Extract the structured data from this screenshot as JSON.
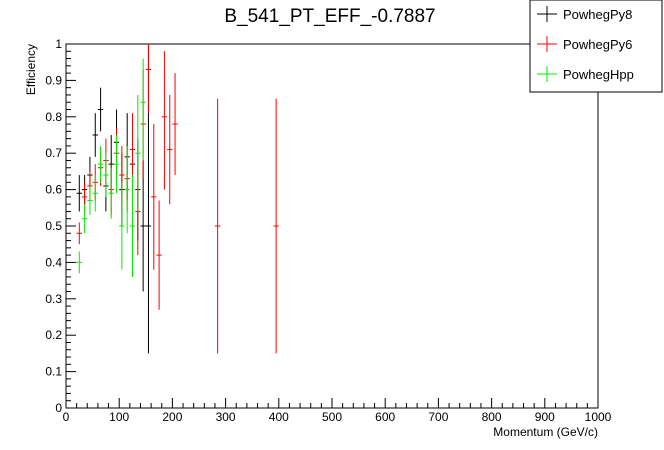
{
  "chart_data": {
    "type": "scatter",
    "title": "B_541_PT_EFF_-0.7887",
    "xlabel": "Momentum (GeV/c)",
    "ylabel": "Efficiency",
    "xlim": [
      0,
      1000
    ],
    "ylim": [
      0,
      1
    ],
    "x_ticks": [
      "0",
      "100",
      "200",
      "300",
      "400",
      "500",
      "600",
      "700",
      "800",
      "900",
      "1000"
    ],
    "y_ticks": [
      "0",
      "0.1",
      "0.2",
      "0.3",
      "0.4",
      "0.5",
      "0.6",
      "0.7",
      "0.8",
      "0.9",
      "1"
    ],
    "grid": false,
    "legend_position": "top-right",
    "series": [
      {
        "name": "PowhegPy8",
        "color": "#000000",
        "points": [
          {
            "x": 25,
            "y": 0.59,
            "yerr_low": 0.05,
            "yerr_high": 0.05,
            "xerr": 5
          },
          {
            "x": 35,
            "y": 0.6,
            "yerr_low": 0.04,
            "yerr_high": 0.04,
            "xerr": 5
          },
          {
            "x": 45,
            "y": 0.64,
            "yerr_low": 0.05,
            "yerr_high": 0.05,
            "xerr": 5
          },
          {
            "x": 55,
            "y": 0.75,
            "yerr_low": 0.06,
            "yerr_high": 0.06,
            "xerr": 5
          },
          {
            "x": 65,
            "y": 0.82,
            "yerr_low": 0.06,
            "yerr_high": 0.06,
            "xerr": 5
          },
          {
            "x": 75,
            "y": 0.61,
            "yerr_low": 0.07,
            "yerr_high": 0.07,
            "xerr": 5
          },
          {
            "x": 85,
            "y": 0.67,
            "yerr_low": 0.08,
            "yerr_high": 0.08,
            "xerr": 5
          },
          {
            "x": 95,
            "y": 0.73,
            "yerr_low": 0.09,
            "yerr_high": 0.09,
            "xerr": 5
          },
          {
            "x": 105,
            "y": 0.6,
            "yerr_low": 0.1,
            "yerr_high": 0.1,
            "xerr": 5
          },
          {
            "x": 115,
            "y": 0.69,
            "yerr_low": 0.12,
            "yerr_high": 0.12,
            "xerr": 5
          },
          {
            "x": 125,
            "y": 0.67,
            "yerr_low": 0.13,
            "yerr_high": 0.13,
            "xerr": 5
          },
          {
            "x": 135,
            "y": 0.6,
            "yerr_low": 0.14,
            "yerr_high": 0.14,
            "xerr": 5
          },
          {
            "x": 145,
            "y": 0.5,
            "yerr_low": 0.18,
            "yerr_high": 0.18,
            "xerr": 5
          },
          {
            "x": 155,
            "y": 0.5,
            "yerr_low": 0.35,
            "yerr_high": 0.5,
            "xerr": 5
          }
        ]
      },
      {
        "name": "PowhegPy6",
        "color": "#ff0000",
        "points": [
          {
            "x": 25,
            "y": 0.48,
            "yerr_low": 0.03,
            "yerr_high": 0.03,
            "xerr": 5
          },
          {
            "x": 35,
            "y": 0.58,
            "yerr_low": 0.04,
            "yerr_high": 0.04,
            "xerr": 5
          },
          {
            "x": 45,
            "y": 0.61,
            "yerr_low": 0.04,
            "yerr_high": 0.04,
            "xerr": 5
          },
          {
            "x": 55,
            "y": 0.62,
            "yerr_low": 0.05,
            "yerr_high": 0.05,
            "xerr": 5
          },
          {
            "x": 65,
            "y": 0.66,
            "yerr_low": 0.05,
            "yerr_high": 0.05,
            "xerr": 5
          },
          {
            "x": 75,
            "y": 0.68,
            "yerr_low": 0.06,
            "yerr_high": 0.06,
            "xerr": 5
          },
          {
            "x": 85,
            "y": 0.6,
            "yerr_low": 0.07,
            "yerr_high": 0.07,
            "xerr": 5
          },
          {
            "x": 95,
            "y": 0.7,
            "yerr_low": 0.07,
            "yerr_high": 0.07,
            "xerr": 5
          },
          {
            "x": 105,
            "y": 0.64,
            "yerr_low": 0.08,
            "yerr_high": 0.08,
            "xerr": 5
          },
          {
            "x": 115,
            "y": 0.63,
            "yerr_low": 0.09,
            "yerr_high": 0.09,
            "xerr": 5
          },
          {
            "x": 125,
            "y": 0.71,
            "yerr_low": 0.1,
            "yerr_high": 0.1,
            "xerr": 5
          },
          {
            "x": 135,
            "y": 0.54,
            "yerr_low": 0.12,
            "yerr_high": 0.12,
            "xerr": 5
          },
          {
            "x": 145,
            "y": 0.78,
            "yerr_low": 0.15,
            "yerr_high": 0.15,
            "xerr": 5
          },
          {
            "x": 155,
            "y": 0.93,
            "yerr_low": 0.12,
            "yerr_high": 0.07,
            "xerr": 5
          },
          {
            "x": 165,
            "y": 0.58,
            "yerr_low": 0.2,
            "yerr_high": 0.2,
            "xerr": 5
          },
          {
            "x": 175,
            "y": 0.42,
            "yerr_low": 0.15,
            "yerr_high": 0.15,
            "xerr": 5
          },
          {
            "x": 185,
            "y": 0.8,
            "yerr_low": 0.2,
            "yerr_high": 0.18,
            "xerr": 5
          },
          {
            "x": 195,
            "y": 0.71,
            "yerr_low": 0.15,
            "yerr_high": 0.15,
            "xerr": 5
          },
          {
            "x": 205,
            "y": 0.78,
            "yerr_low": 0.14,
            "yerr_high": 0.14,
            "xerr": 5
          },
          {
            "x": 285,
            "y": 0.5,
            "yerr_low": 0.35,
            "yerr_high": 0.35,
            "xerr": 5
          },
          {
            "x": 395,
            "y": 0.5,
            "yerr_low": 0.35,
            "yerr_high": 0.35,
            "xerr": 5
          }
        ]
      },
      {
        "name": "PowhegHpp",
        "color": "#00ee00",
        "points": [
          {
            "x": 25,
            "y": 0.4,
            "yerr_low": 0.03,
            "yerr_high": 0.03,
            "xerr": 5
          },
          {
            "x": 35,
            "y": 0.52,
            "yerr_low": 0.04,
            "yerr_high": 0.04,
            "xerr": 5
          },
          {
            "x": 45,
            "y": 0.57,
            "yerr_low": 0.04,
            "yerr_high": 0.04,
            "xerr": 5
          },
          {
            "x": 55,
            "y": 0.59,
            "yerr_low": 0.05,
            "yerr_high": 0.05,
            "xerr": 5
          },
          {
            "x": 65,
            "y": 0.67,
            "yerr_low": 0.05,
            "yerr_high": 0.05,
            "xerr": 5
          },
          {
            "x": 75,
            "y": 0.64,
            "yerr_low": 0.06,
            "yerr_high": 0.06,
            "xerr": 5
          },
          {
            "x": 85,
            "y": 0.59,
            "yerr_low": 0.07,
            "yerr_high": 0.07,
            "xerr": 5
          },
          {
            "x": 95,
            "y": 0.67,
            "yerr_low": 0.08,
            "yerr_high": 0.08,
            "xerr": 5
          },
          {
            "x": 105,
            "y": 0.5,
            "yerr_low": 0.12,
            "yerr_high": 0.12,
            "xerr": 5
          },
          {
            "x": 115,
            "y": 0.6,
            "yerr_low": 0.12,
            "yerr_high": 0.12,
            "xerr": 5
          },
          {
            "x": 125,
            "y": 0.5,
            "yerr_low": 0.14,
            "yerr_high": 0.14,
            "xerr": 5
          },
          {
            "x": 135,
            "y": 0.7,
            "yerr_low": 0.16,
            "yerr_high": 0.16,
            "xerr": 5
          },
          {
            "x": 145,
            "y": 0.84,
            "yerr_low": 0.16,
            "yerr_high": 0.12,
            "xerr": 5
          }
        ]
      }
    ]
  }
}
